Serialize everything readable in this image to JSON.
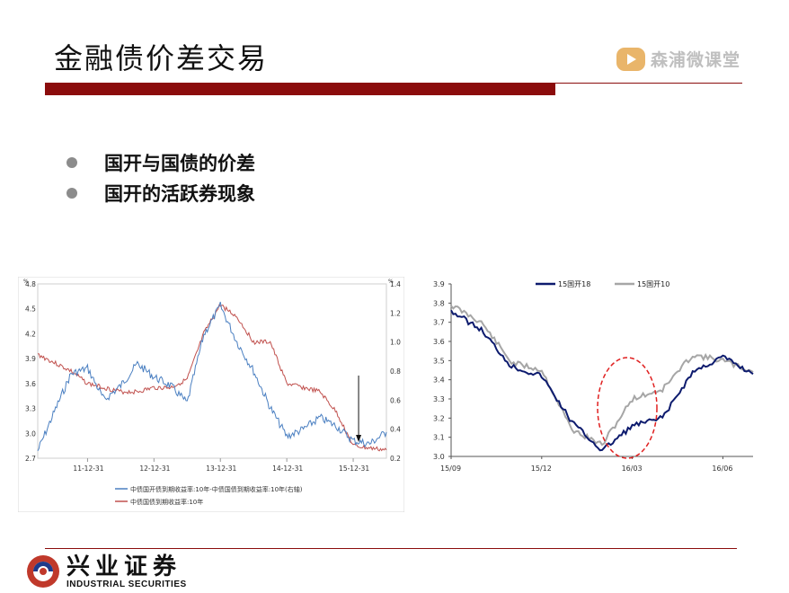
{
  "slide": {
    "title": "金融债价差交易",
    "brand": "森浦微课堂",
    "bullets": [
      "国开与国债的价差",
      "国开的活跃券现象"
    ],
    "footer_cn": "兴业证券",
    "footer_en": "INDUSTRIAL SECURITIES"
  },
  "colors": {
    "accent": "#8b0c0c",
    "blue_series": "#4a7fc1",
    "red_series": "#c0504d",
    "navy_series": "#0d1b6e",
    "gray_series": "#a6a6a6",
    "ellipse": "#e02020"
  },
  "chart_data": [
    {
      "type": "line",
      "y_unit_left": "%",
      "y_unit_right": "%",
      "ylim_left": [
        2.7,
        4.8
      ],
      "ylim_right": [
        0.2,
        1.4
      ],
      "yticks_left": [
        "4.8",
        "4.5",
        "4.2",
        "3.9",
        "3.6",
        "3.3",
        "3.0",
        "2.7"
      ],
      "yticks_right": [
        "1.4",
        "1.2",
        "1.0",
        "0.8",
        "0.6",
        "0.4",
        "0.2"
      ],
      "x_ticks": [
        "11-12-31",
        "12-12-31",
        "13-12-31",
        "14-12-31",
        "15-12-31"
      ],
      "x": [
        "2011-03",
        "2011-06",
        "2011-09",
        "2011-12",
        "2012-03",
        "2012-06",
        "2012-09",
        "2012-12",
        "2013-03",
        "2013-06",
        "2013-09",
        "2013-12",
        "2014-03",
        "2014-06",
        "2014-09",
        "2014-12",
        "2015-03",
        "2015-06",
        "2015-09",
        "2015-12",
        "2016-03",
        "2016-06"
      ],
      "series": [
        {
          "name": "中债国开债到期收益率:10年-中债国债到期收益率:10年(右轴)",
          "axis": "right",
          "values": [
            0.25,
            0.52,
            0.78,
            0.82,
            0.6,
            0.7,
            0.85,
            0.76,
            0.7,
            0.58,
            1.05,
            1.25,
            1.0,
            0.8,
            0.55,
            0.35,
            0.4,
            0.48,
            0.42,
            0.32,
            0.3,
            0.38
          ]
        },
        {
          "name": "中债国债到期收益率:10年",
          "axis": "left",
          "values": [
            3.95,
            3.85,
            3.75,
            3.6,
            3.55,
            3.5,
            3.5,
            3.55,
            3.55,
            3.65,
            4.2,
            4.55,
            4.4,
            4.1,
            4.1,
            3.6,
            3.55,
            3.5,
            3.25,
            2.85,
            2.82,
            2.8
          ]
        }
      ]
    },
    {
      "type": "line",
      "ylim": [
        3.0,
        3.9
      ],
      "yticks": [
        "3.9",
        "3.8",
        "3.7",
        "3.6",
        "3.5",
        "3.4",
        "3.3",
        "3.2",
        "3.1",
        "3.0"
      ],
      "x_ticks": [
        "15/09",
        "15/12",
        "16/03",
        "16/06"
      ],
      "x": [
        "2015-09",
        "2015-10",
        "2015-11",
        "2015-12",
        "2016-01",
        "2016-02",
        "2016-03",
        "2016-04",
        "2016-05",
        "2016-06",
        "2016-07"
      ],
      "series": [
        {
          "name": "15国开18",
          "values": [
            3.76,
            3.66,
            3.47,
            3.42,
            3.18,
            3.03,
            3.16,
            3.2,
            3.44,
            3.52,
            3.43
          ]
        },
        {
          "name": "15国开10",
          "values": [
            3.79,
            3.7,
            3.49,
            3.45,
            3.14,
            3.06,
            3.3,
            3.35,
            3.53,
            3.5,
            3.44
          ]
        }
      ]
    }
  ]
}
